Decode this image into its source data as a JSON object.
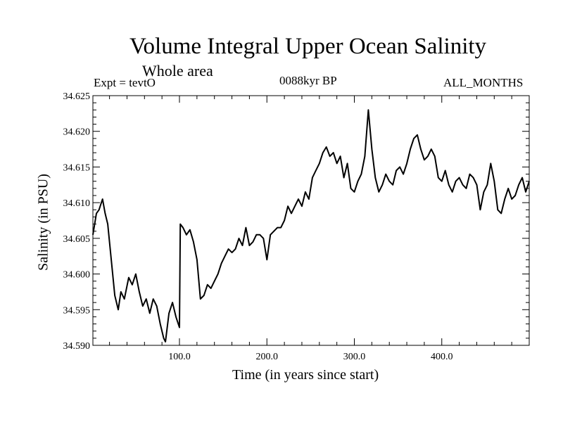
{
  "chart_data": {
    "type": "line",
    "title": "Volume Integral Upper Ocean Salinity",
    "subtitle": "Whole area",
    "annotations": {
      "experiment": "Expt = tevtO",
      "period": "0088kyr BP",
      "months": "ALL_MONTHS"
    },
    "xlabel": "Time (in years since start)",
    "ylabel": "Salinity (in PSU)",
    "xlim": [
      1,
      500
    ],
    "ylim": [
      34.59,
      34.625
    ],
    "xticks": [
      100,
      200,
      300,
      400
    ],
    "xtick_labels": [
      "100.0",
      "200.0",
      "300.0",
      "400.0"
    ],
    "yticks": [
      34.59,
      34.595,
      34.6,
      34.605,
      34.61,
      34.615,
      34.62,
      34.625
    ],
    "ytick_labels": [
      "34.590",
      "34.595",
      "34.600",
      "34.605",
      "34.610",
      "34.615",
      "34.620",
      "34.625"
    ],
    "grid": false,
    "series": [
      {
        "x": [
          1,
          5,
          8,
          12,
          15,
          18,
          22,
          26,
          30,
          33,
          37,
          42,
          46,
          50,
          54,
          58,
          62,
          66,
          70,
          74,
          78,
          82,
          84,
          88,
          92,
          96,
          100,
          101,
          104,
          108,
          112,
          116,
          120,
          124,
          128,
          132,
          136,
          140,
          144,
          148,
          152,
          156,
          160,
          164,
          168,
          172,
          176,
          180,
          184,
          188,
          192,
          196,
          200,
          204,
          208,
          212,
          216,
          220,
          224,
          228,
          232,
          236,
          240,
          244,
          248,
          252,
          256,
          260,
          264,
          268,
          272,
          276,
          280,
          284,
          288,
          292,
          296,
          300,
          304,
          308,
          312,
          316,
          320,
          324,
          328,
          332,
          336,
          340,
          344,
          348,
          352,
          356,
          360,
          364,
          368,
          372,
          376,
          380,
          384,
          388,
          392,
          396,
          400,
          404,
          408,
          412,
          416,
          420,
          424,
          428,
          432,
          436,
          440,
          444,
          448,
          452,
          456,
          460,
          464,
          468,
          472,
          476,
          480,
          484,
          488,
          492,
          496,
          500
        ],
        "y": [
          34.6055,
          34.6085,
          34.609,
          34.6105,
          34.6085,
          34.607,
          34.602,
          34.597,
          34.595,
          34.5975,
          34.5965,
          34.5995,
          34.5985,
          34.6,
          34.5975,
          34.5955,
          34.5965,
          34.5945,
          34.5965,
          34.5955,
          34.593,
          34.591,
          34.5905,
          34.5945,
          34.596,
          34.594,
          34.5925,
          34.607,
          34.6065,
          34.6055,
          34.6062,
          34.6045,
          34.602,
          34.5965,
          34.597,
          34.5985,
          34.598,
          34.599,
          34.6,
          34.6015,
          34.6025,
          34.6035,
          34.603,
          34.6035,
          34.605,
          34.604,
          34.6065,
          34.604,
          34.6045,
          34.6055,
          34.6055,
          34.605,
          34.602,
          34.6055,
          34.606,
          34.6065,
          34.6065,
          34.6075,
          34.6095,
          34.6085,
          34.6095,
          34.6105,
          34.6095,
          34.6115,
          34.6105,
          34.6135,
          34.6145,
          34.6155,
          34.617,
          34.6178,
          34.6165,
          34.617,
          34.6155,
          34.6165,
          34.6135,
          34.6155,
          34.612,
          34.6115,
          34.613,
          34.614,
          34.6165,
          34.623,
          34.6175,
          34.6135,
          34.6115,
          34.6125,
          34.614,
          34.613,
          34.6125,
          34.6145,
          34.615,
          34.614,
          34.6155,
          34.6175,
          34.619,
          34.6195,
          34.6175,
          34.616,
          34.6165,
          34.6175,
          34.6165,
          34.6135,
          34.613,
          34.6145,
          34.6125,
          34.6115,
          34.613,
          34.6135,
          34.6125,
          34.612,
          34.614,
          34.6135,
          34.6125,
          34.609,
          34.6115,
          34.6125,
          34.6155,
          34.613,
          34.609,
          34.6085,
          34.6105,
          34.612,
          34.6105,
          34.611,
          34.6125,
          34.6135,
          34.6115,
          34.613
        ]
      }
    ]
  }
}
